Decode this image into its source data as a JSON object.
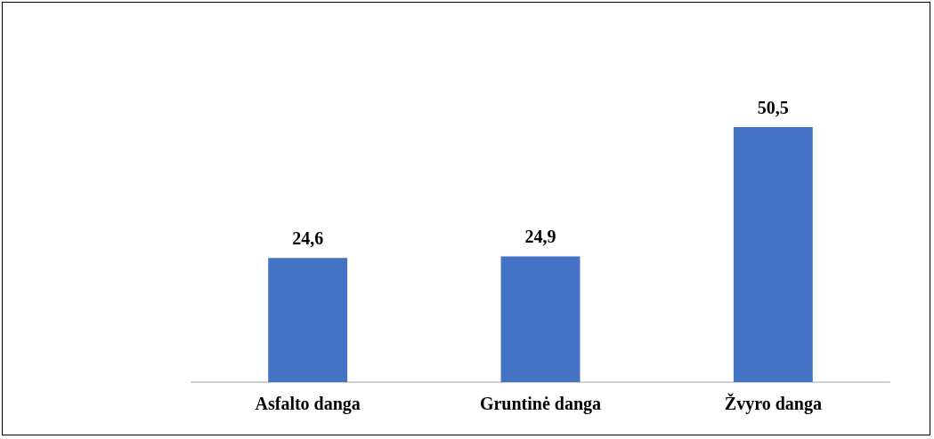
{
  "chart_data": {
    "type": "bar",
    "categories": [
      "Asfalto danga",
      "Gruntinė danga",
      "Žvyro danga"
    ],
    "values": [
      24.6,
      24.9,
      50.5
    ],
    "value_labels": [
      "24,6",
      "24,9",
      "50,5"
    ],
    "color": "#4472c4"
  }
}
